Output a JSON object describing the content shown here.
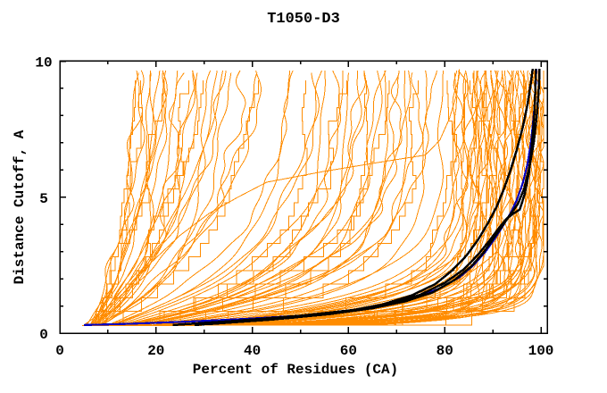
{
  "chart_data": {
    "type": "line",
    "title": "T1050-D3",
    "xlabel": "Percent of Residues (CA)",
    "ylabel": "Distance Cutoff, A",
    "xlim": [
      0,
      101.3
    ],
    "ylim": [
      0,
      10
    ],
    "x_major_ticks": [
      0,
      20,
      40,
      60,
      80,
      100
    ],
    "x_minor_ticks": [
      10,
      30,
      50,
      70,
      90
    ],
    "y_major_ticks": [
      0,
      5,
      10
    ],
    "y_minor_ticks": [
      1,
      2,
      3,
      4,
      6,
      7,
      8,
      9
    ],
    "grid": false,
    "legend": "none",
    "frame": "box-with-inward-ticks-all-sides",
    "colors": {
      "prediction": "#FF8C00",
      "highlight_black": "#000000",
      "highlight_navy": "#0000C0",
      "frame": "#000000",
      "background": "#FFFFFF"
    },
    "background_series": {
      "name": "prediction-curves",
      "color": "#FF8C00",
      "count": 112,
      "y_start": 0.3,
      "y_end": 9.72,
      "model": "x(y) = xe - (xe - xs) * exp(-k * y)",
      "params_xs_xe_k": [
        [
          5.0,
          16,
          0.3
        ],
        [
          5.5,
          17,
          0.26
        ],
        [
          4.6,
          17.5,
          0.34
        ],
        [
          6.0,
          18,
          0.22
        ],
        [
          5.2,
          19,
          0.38
        ],
        [
          5.8,
          20,
          0.18
        ],
        [
          4.8,
          20.5,
          0.3
        ],
        [
          6.2,
          21,
          0.42
        ],
        [
          5.0,
          22,
          0.25
        ],
        [
          5.5,
          23,
          0.33
        ],
        [
          4.7,
          24,
          0.2
        ],
        [
          6.0,
          25,
          0.4
        ],
        [
          5.1,
          26,
          0.28
        ],
        [
          5.6,
          27,
          0.16
        ],
        [
          4.9,
          28,
          0.36
        ],
        [
          6.1,
          29,
          0.24
        ],
        [
          5.3,
          30,
          0.32
        ],
        [
          5.7,
          31,
          0.21
        ],
        [
          4.8,
          32,
          0.44
        ],
        [
          6.3,
          34,
          0.27
        ],
        [
          5.0,
          35,
          0.19
        ],
        [
          5.5,
          36,
          0.35
        ],
        [
          4.9,
          38,
          0.23
        ],
        [
          6.0,
          40,
          0.31
        ],
        [
          5.2,
          41,
          0.17
        ],
        [
          5.6,
          43,
          0.29
        ],
        [
          5.0,
          45,
          0.26
        ],
        [
          6.2,
          47,
          0.22
        ],
        [
          5.0,
          48,
          0.45
        ],
        [
          5.5,
          50,
          0.34
        ],
        [
          4.8,
          52,
          0.52
        ],
        [
          6.0,
          54,
          0.4
        ],
        [
          5.2,
          55,
          0.6
        ],
        [
          5.7,
          56,
          0.36
        ],
        [
          4.9,
          58,
          0.55
        ],
        [
          6.1,
          59,
          0.44
        ],
        [
          5.0,
          60,
          0.65
        ],
        [
          5.5,
          61,
          0.38
        ],
        [
          4.7,
          62,
          0.58
        ],
        [
          6.2,
          63,
          0.47
        ],
        [
          5.1,
          64,
          0.7
        ],
        [
          5.6,
          65,
          0.42
        ],
        [
          4.9,
          66,
          0.62
        ],
        [
          6.0,
          67,
          0.5
        ],
        [
          5.2,
          68,
          0.75
        ],
        [
          5.8,
          69,
          0.45
        ],
        [
          5.0,
          70,
          0.66
        ],
        [
          6.3,
          71,
          0.55
        ],
        [
          4.8,
          72,
          0.8
        ],
        [
          5.5,
          73,
          0.48
        ],
        [
          5.1,
          74,
          0.7
        ],
        [
          6.0,
          75,
          0.58
        ],
        [
          4.9,
          76,
          0.85
        ],
        [
          5.6,
          78,
          0.52
        ],
        [
          5.2,
          80,
          0.75
        ],
        [
          5.0,
          81,
          0.95
        ],
        [
          5.5,
          82,
          1.1
        ],
        [
          4.8,
          82.5,
          0.85
        ],
        [
          6.0,
          83,
          1.25
        ],
        [
          5.2,
          83.5,
          1.0
        ],
        [
          5.7,
          84,
          1.4
        ],
        [
          4.9,
          84.5,
          0.9
        ],
        [
          6.1,
          85,
          1.15
        ],
        [
          5.0,
          85.5,
          1.55
        ],
        [
          5.5,
          86,
          1.05
        ],
        [
          5.2,
          86,
          2.0
        ],
        [
          4.7,
          86.5,
          1.3
        ],
        [
          6.2,
          87,
          0.95
        ],
        [
          5.4,
          87,
          2.3
        ],
        [
          5.1,
          87.5,
          1.7
        ],
        [
          5.6,
          88,
          1.2
        ],
        [
          4.9,
          88,
          3.2
        ],
        [
          6.0,
          88.5,
          1.45
        ],
        [
          5.2,
          89,
          1.0
        ],
        [
          5.8,
          89,
          2.9
        ],
        [
          5.0,
          89.5,
          1.6
        ],
        [
          6.3,
          90,
          1.25
        ],
        [
          4.8,
          90,
          3.6
        ],
        [
          5.5,
          90.5,
          1.85
        ],
        [
          5.1,
          91,
          1.1
        ],
        [
          6.0,
          91,
          2.6
        ],
        [
          4.9,
          91.5,
          1.5
        ],
        [
          5.6,
          92,
          1.95
        ],
        [
          5.2,
          92,
          3.3
        ],
        [
          6.1,
          92.5,
          1.3
        ],
        [
          5.0,
          93,
          1.75
        ],
        [
          5.5,
          93,
          2.8
        ],
        [
          4.7,
          93.5,
          1.15
        ],
        [
          6.2,
          94,
          2.1
        ],
        [
          5.1,
          94,
          3.7
        ],
        [
          5.6,
          94.5,
          1.6
        ],
        [
          4.9,
          95,
          2.4
        ],
        [
          6.0,
          95,
          1.35
        ],
        [
          5.2,
          95.5,
          1.9
        ],
        [
          5.7,
          96,
          2.7
        ],
        [
          5.0,
          96,
          1.2
        ],
        [
          6.1,
          96.5,
          2.2
        ],
        [
          5.3,
          97,
          1.7
        ],
        [
          5.8,
          97,
          3.1
        ],
        [
          4.8,
          97.5,
          1.45
        ],
        [
          6.0,
          98,
          2.5
        ],
        [
          5.1,
          98,
          1.85
        ],
        [
          5.5,
          98.5,
          2.95
        ],
        [
          5.0,
          98.5,
          1.55
        ],
        [
          6.2,
          99,
          2.3
        ],
        [
          4.9,
          99,
          1.3
        ],
        [
          5.6,
          99.3,
          2.75
        ],
        [
          5.2,
          99.5,
          2.05
        ],
        [
          6.0,
          99.7,
          1.65
        ],
        [
          5.0,
          100,
          2.45
        ],
        [
          5.5,
          100,
          1.4
        ],
        [
          4.8,
          100.3,
          3.0
        ]
      ],
      "extra_curves": [
        {
          "points": [
            [
              5,
              0.3
            ],
            [
              9,
              0.8
            ],
            [
              14,
              1.6
            ],
            [
              19,
              2.6
            ],
            [
              25,
              3.6
            ],
            [
              31,
              4.4
            ],
            [
              37,
              5.0
            ],
            [
              43,
              5.55
            ],
            [
              55,
              5.95
            ],
            [
              67,
              6.3
            ],
            [
              76,
              6.55
            ],
            [
              79,
              7.1
            ],
            [
              81,
              7.9
            ],
            [
              82.5,
              8.8
            ],
            [
              83,
              9.7
            ]
          ]
        }
      ]
    },
    "highlight_series": [
      {
        "name": "navy-model",
        "color": "#0000C0",
        "width": 2.2,
        "points": [
          [
            5,
            0.3
          ],
          [
            14,
            0.34
          ],
          [
            26,
            0.42
          ],
          [
            38,
            0.52
          ],
          [
            50,
            0.64
          ],
          [
            60,
            0.82
          ],
          [
            68,
            1.02
          ],
          [
            74,
            1.3
          ],
          [
            79,
            1.65
          ],
          [
            83,
            2.05
          ],
          [
            86,
            2.5
          ],
          [
            88.5,
            3.0
          ],
          [
            90.5,
            3.5
          ],
          [
            92.3,
            4.0
          ],
          [
            93.8,
            4.45
          ],
          [
            95,
            4.9
          ],
          [
            96.2,
            5.5
          ],
          [
            97.2,
            6.2
          ],
          [
            98,
            7.1
          ],
          [
            98.6,
            8.2
          ],
          [
            98.9,
            9.1
          ],
          [
            99.05,
            9.72
          ]
        ]
      },
      {
        "name": "black-model-1",
        "color": "#000000",
        "width": 2.5,
        "points": [
          [
            30.5,
            0.33
          ],
          [
            44,
            0.5
          ],
          [
            56,
            0.7
          ],
          [
            65,
            0.92
          ],
          [
            72,
            1.18
          ],
          [
            77.5,
            1.5
          ],
          [
            82,
            1.95
          ],
          [
            85.5,
            2.45
          ],
          [
            88,
            2.95
          ],
          [
            90,
            3.45
          ],
          [
            92,
            3.95
          ],
          [
            93.6,
            4.35
          ],
          [
            95.2,
            4.75
          ],
          [
            96.5,
            5.3
          ],
          [
            97.6,
            6.1
          ],
          [
            98.5,
            7.0
          ],
          [
            99.2,
            8.1
          ],
          [
            99.6,
            9.1
          ],
          [
            99.7,
            9.72
          ]
        ]
      },
      {
        "name": "black-model-2",
        "color": "#000000",
        "width": 2.5,
        "points": [
          [
            28,
            0.3
          ],
          [
            35,
            0.4
          ],
          [
            48,
            0.56
          ],
          [
            59,
            0.78
          ],
          [
            67,
            1.05
          ],
          [
            73,
            1.38
          ],
          [
            78,
            1.8
          ],
          [
            81.5,
            2.3
          ],
          [
            84.5,
            2.85
          ],
          [
            87,
            3.45
          ],
          [
            89,
            4.05
          ],
          [
            90.8,
            4.65
          ],
          [
            92.3,
            5.3
          ],
          [
            93.7,
            6.0
          ],
          [
            95,
            6.75
          ],
          [
            96.2,
            7.55
          ],
          [
            97.2,
            8.4
          ],
          [
            97.9,
            9.2
          ],
          [
            98.3,
            9.72
          ]
        ]
      },
      {
        "name": "black-model-3",
        "color": "#000000",
        "width": 2.5,
        "points": [
          [
            23.5,
            0.3
          ],
          [
            37,
            0.46
          ],
          [
            50,
            0.64
          ],
          [
            61,
            0.85
          ],
          [
            69,
            1.1
          ],
          [
            75,
            1.42
          ],
          [
            80,
            1.85
          ],
          [
            84,
            2.35
          ],
          [
            87,
            2.9
          ],
          [
            89.3,
            3.4
          ],
          [
            91.2,
            3.85
          ],
          [
            92.8,
            4.2
          ],
          [
            94.3,
            4.4
          ],
          [
            95.6,
            4.55
          ],
          [
            96.6,
            5.1
          ],
          [
            97.5,
            5.9
          ],
          [
            98.1,
            6.9
          ],
          [
            98.6,
            8.0
          ],
          [
            98.85,
            9.0
          ],
          [
            98.95,
            9.72
          ]
        ]
      }
    ]
  }
}
